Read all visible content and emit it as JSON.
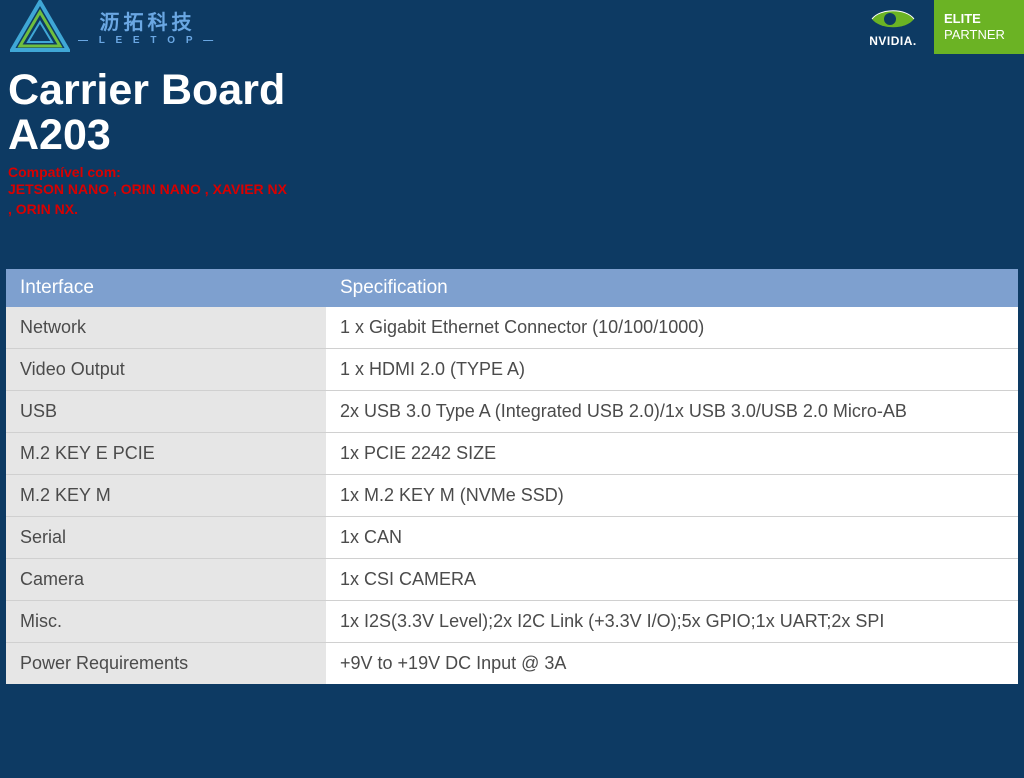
{
  "header": {
    "logo": {
      "cn": "沥拓科技",
      "en": "— L E E T O P —",
      "triangle_outer": "#3fa7d6",
      "triangle_inner": "#6fbf3f"
    },
    "nvidia": {
      "label": "NVIDIA.",
      "eye_color": "#6bb324",
      "elite_line1": "ELITE",
      "elite_line2": "PARTNER",
      "elite_bg": "#6bb324"
    }
  },
  "title": {
    "line1": "Carrier Board",
    "line2": "A203"
  },
  "compat": {
    "label": "Compatível com:",
    "list": "JETSON NANO , ORIN NANO , XAVIER NX , ORIN NX."
  },
  "table": {
    "header": {
      "col1": "Interface",
      "col2": "Specification"
    },
    "header_bg": "#7ea0cf",
    "col1_bg": "#e6e6e6",
    "col2_bg": "#ffffff",
    "text_color": "#4b4b4b",
    "rows": [
      {
        "iface": "Network",
        "spec": "1 x   Gigabit Ethernet Connector (10/100/1000)"
      },
      {
        "iface": "Video Output",
        "spec": "1 x HDMI 2.0 (TYPE A)"
      },
      {
        "iface": "USB",
        "spec": "2x USB 3.0 Type A (Integrated USB 2.0)/1x USB 3.0/USB 2.0 Micro-AB"
      },
      {
        "iface": "M.2 KEY E PCIE",
        "spec": "1x PCIE 2242 SIZE"
      },
      {
        "iface": "M.2 KEY M",
        "spec": "1x M.2 KEY M (NVMe SSD)"
      },
      {
        "iface": "Serial",
        "spec": "1x CAN"
      },
      {
        "iface": "Camera",
        "spec": "1x CSI CAMERA"
      },
      {
        "iface": "Misc.",
        "spec": "1x I2S(3.3V Level);2x I2C Link (+3.3V I/O);5x GPIO;1x UART;2x SPI"
      },
      {
        "iface": "Power Requirements",
        "spec": "+9V to +19V   DC Input @ 3A"
      }
    ]
  },
  "colors": {
    "page_bg": "#0d3a63",
    "title_color": "#ffffff",
    "compat_color": "#d80000"
  }
}
